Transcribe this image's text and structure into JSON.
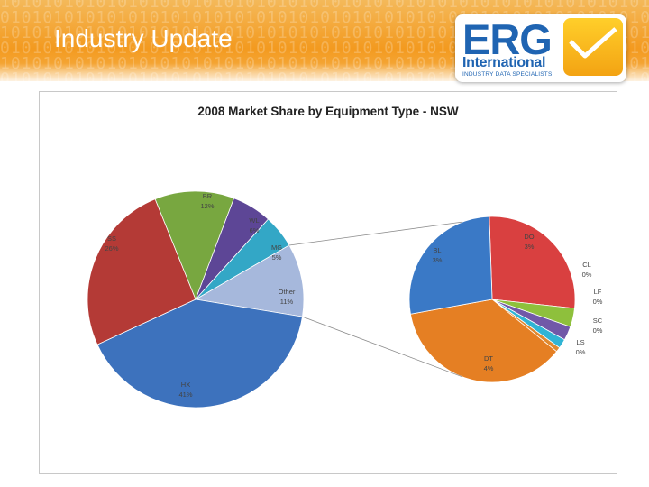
{
  "header": {
    "title": "Industry Update"
  },
  "logo": {
    "name": "ERG",
    "subtitle": "International",
    "tagline": "INDUSTRY DATA SPECIALISTS"
  },
  "colors": {
    "header_orange": "#f39a1f",
    "logo_blue": "#1f64b2",
    "logo_yellow": "#f7b91c"
  },
  "chart_data": {
    "type": "pie",
    "subtype": "pie-of-pie",
    "title": "2008 Market Share by Equipment Type - NSW",
    "main": {
      "slices": [
        {
          "label": "BR",
          "value": 12,
          "text": "12%",
          "color": "#78a740"
        },
        {
          "label": "WL",
          "value": 6,
          "text": "6%",
          "color": "#5d4696"
        },
        {
          "label": "MG",
          "value": 5,
          "text": "5%",
          "color": "#33a7c6"
        },
        {
          "label": "Other",
          "value": 11,
          "text": "11%",
          "color": "#a6b8dc"
        },
        {
          "label": "HX",
          "value": 41,
          "text": "41%",
          "color": "#3d72bd"
        },
        {
          "label": "SS",
          "value": 26,
          "text": "26%",
          "color": "#b43a36"
        }
      ]
    },
    "secondary": {
      "slices": [
        {
          "label": "DO",
          "value": 3,
          "text": "3%",
          "color": "#d94040"
        },
        {
          "label": "CL",
          "value": 0.4,
          "text": "0%",
          "color": "#8ec03c"
        },
        {
          "label": "LF",
          "value": 0.3,
          "text": "0%",
          "color": "#7158a8"
        },
        {
          "label": "SC",
          "value": 0.2,
          "text": "0%",
          "color": "#30b4d4"
        },
        {
          "label": "LS",
          "value": 0.1,
          "text": "0%",
          "color": "#e0892f"
        },
        {
          "label": "DT",
          "value": 4,
          "text": "4%",
          "color": "#e57f23"
        },
        {
          "label": "BL",
          "value": 3,
          "text": "3%",
          "color": "#3a79c6"
        }
      ]
    }
  }
}
